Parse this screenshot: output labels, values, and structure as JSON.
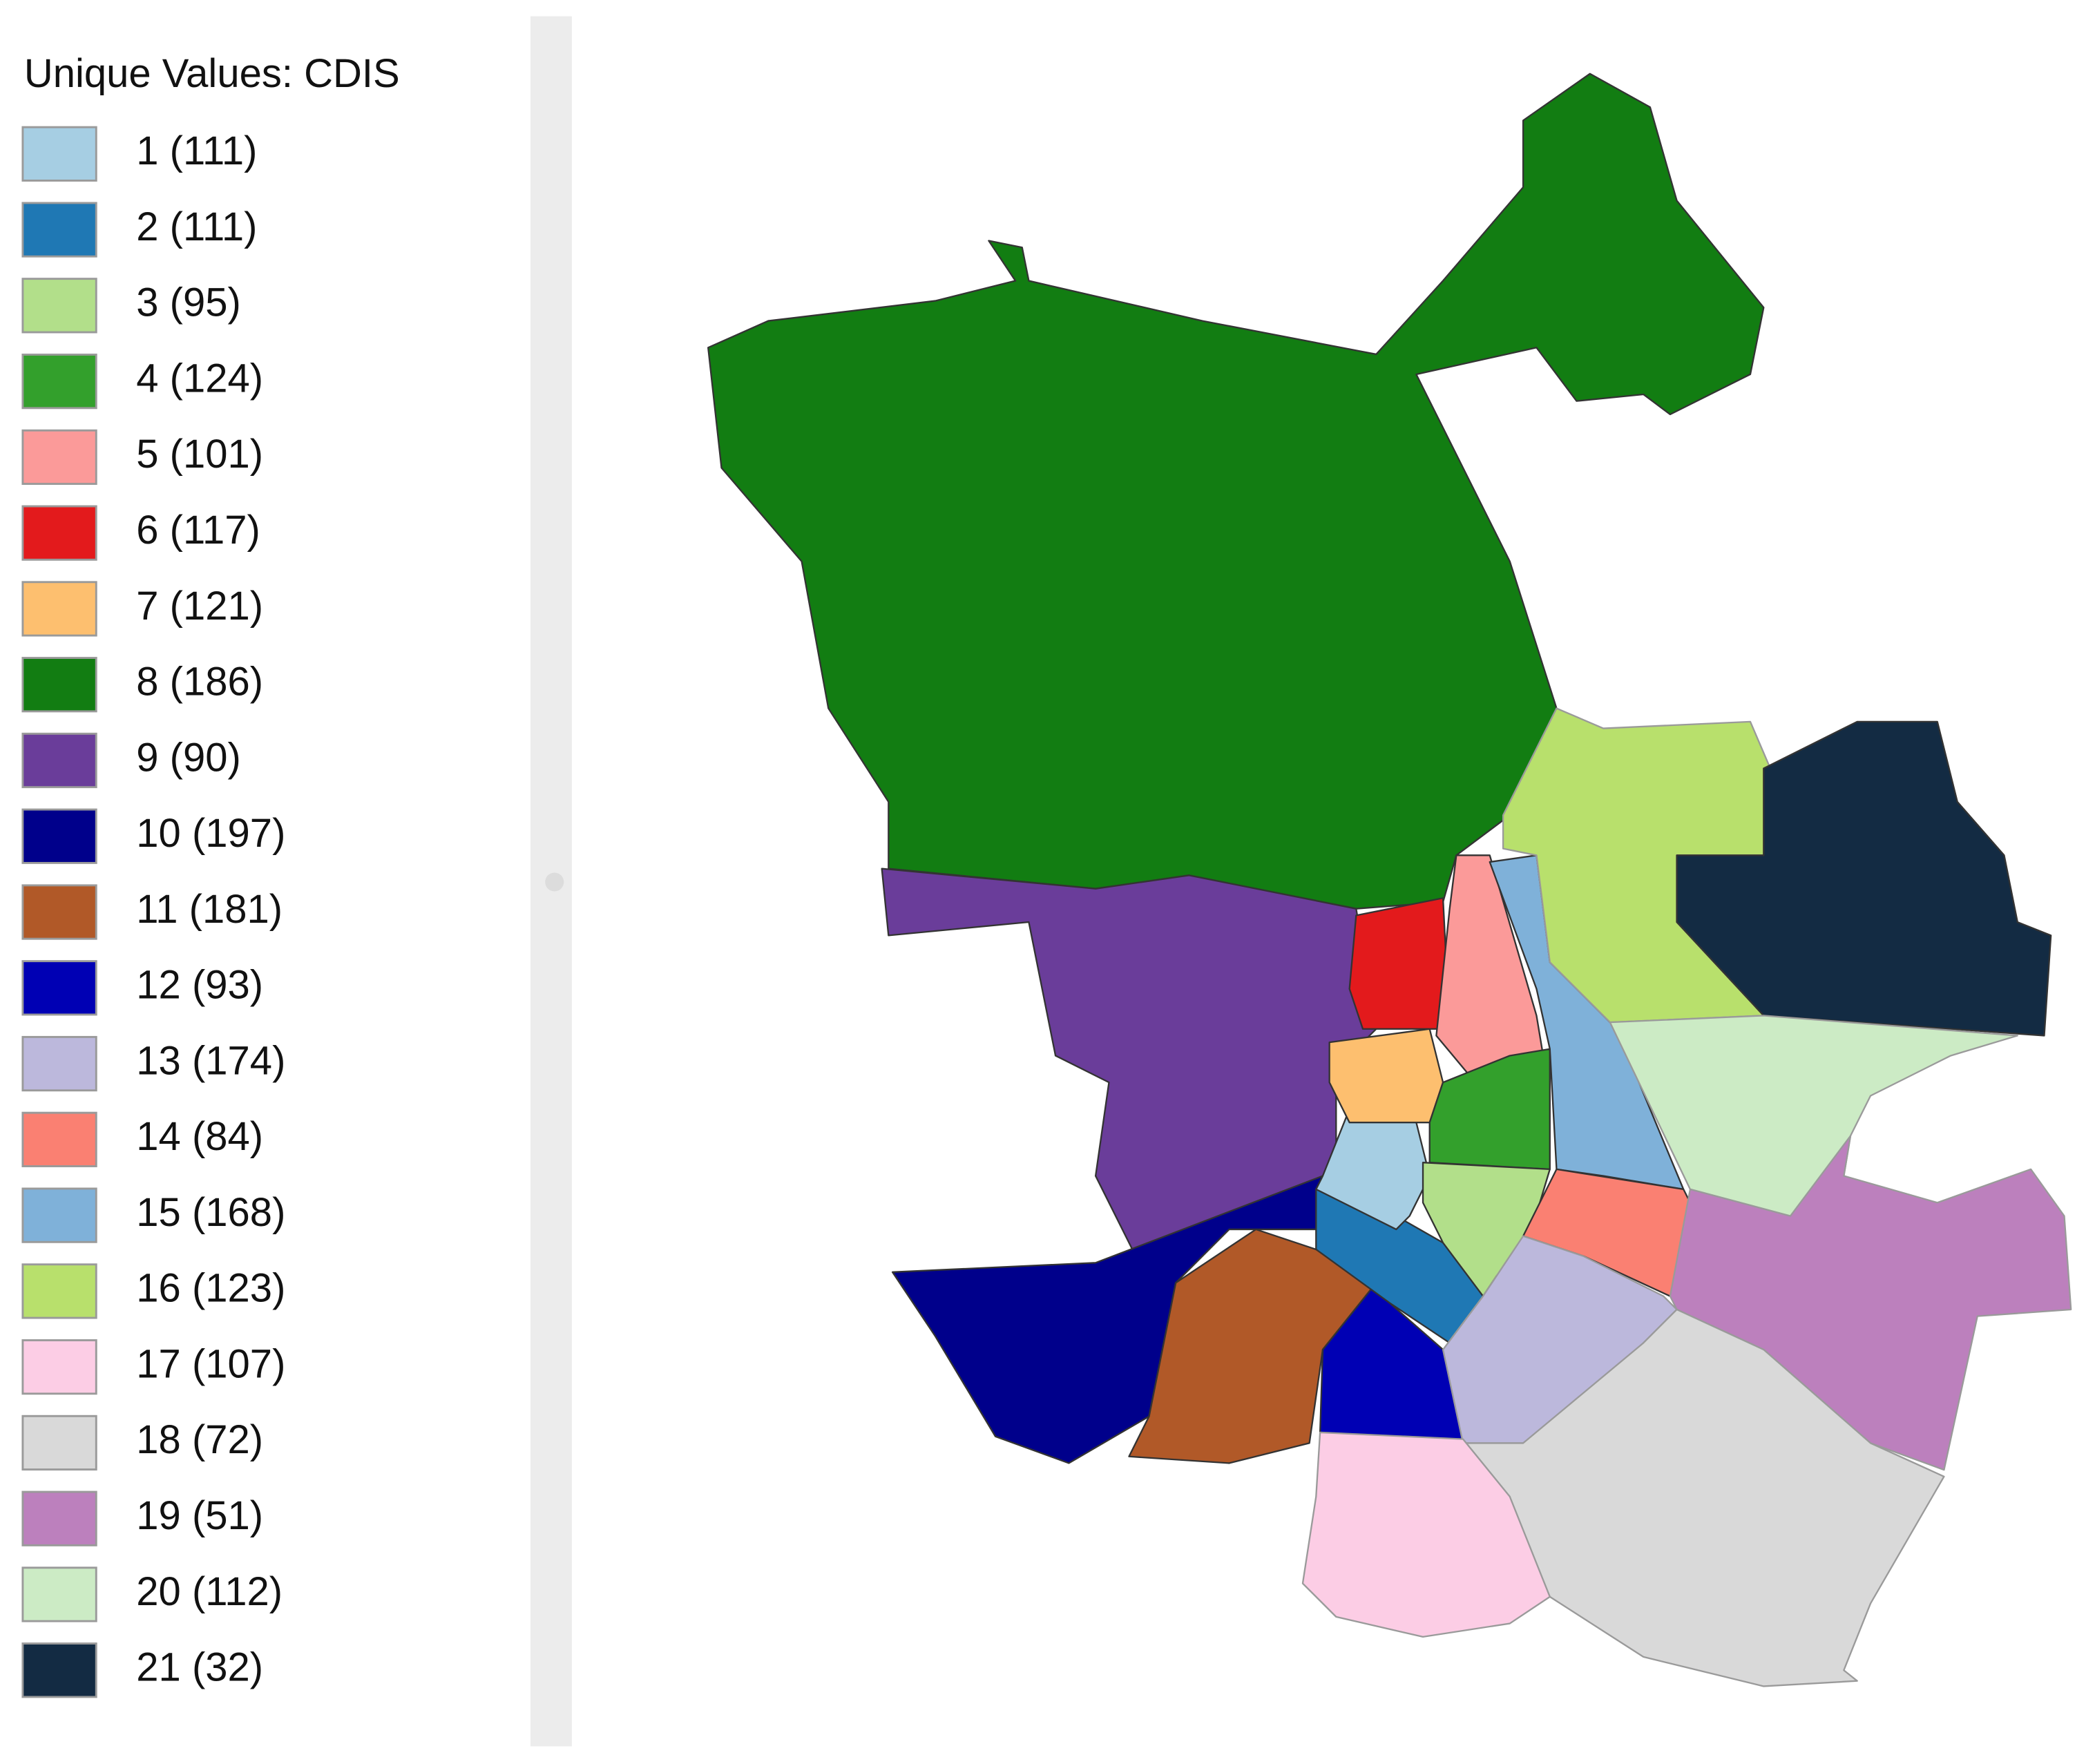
{
  "legend": {
    "title": "Unique Values: CDIS",
    "items": [
      {
        "label": "1 (111)",
        "color": "#a6cee3"
      },
      {
        "label": "2 (111)",
        "color": "#1f78b4"
      },
      {
        "label": "3 (95)",
        "color": "#b2df8a"
      },
      {
        "label": "4 (124)",
        "color": "#33a02c"
      },
      {
        "label": "5 (101)",
        "color": "#fb9a99"
      },
      {
        "label": "6 (117)",
        "color": "#e31a1c"
      },
      {
        "label": "7 (121)",
        "color": "#fdbf6f"
      },
      {
        "label": "8 (186)",
        "color": "#127d12"
      },
      {
        "label": "9 (90)",
        "color": "#6a3d9a"
      },
      {
        "label": "10 (197)",
        "color": "#00008b"
      },
      {
        "label": "11 (181)",
        "color": "#b15928"
      },
      {
        "label": "12 (93)",
        "color": "#0000b4"
      },
      {
        "label": "13 (174)",
        "color": "#bcb8dc"
      },
      {
        "label": "14 (84)",
        "color": "#fa8072"
      },
      {
        "label": "15 (168)",
        "color": "#7fb1d9"
      },
      {
        "label": "16 (123)",
        "color": "#b8e06c"
      },
      {
        "label": "17 (107)",
        "color": "#fccde5"
      },
      {
        "label": "18 (72)",
        "color": "#d9d9d9"
      },
      {
        "label": "19 (51)",
        "color": "#bc80bd"
      },
      {
        "label": "20 (112)",
        "color": "#ccebc5"
      },
      {
        "label": "21 (32)",
        "color": "#132b43"
      }
    ]
  }
}
